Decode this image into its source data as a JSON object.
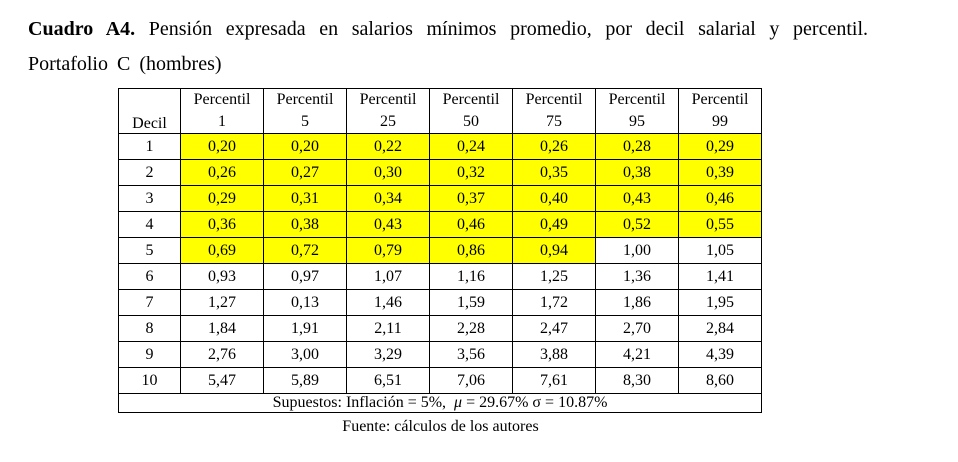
{
  "caption": {
    "label": "Cuadro A4.",
    "text": " Pensión expresada en salarios mínimos promedio, por decil salarial y percentil. Portafolio C (hombres)"
  },
  "table": {
    "decil_header": "Decil",
    "percentil_word": "Percentil",
    "percentiles": [
      "1",
      "5",
      "25",
      "50",
      "75",
      "95",
      "99"
    ],
    "rows": [
      {
        "decil": "1",
        "values": [
          "0,20",
          "0,20",
          "0,22",
          "0,24",
          "0,26",
          "0,28",
          "0,29"
        ],
        "highlight": 7
      },
      {
        "decil": "2",
        "values": [
          "0,26",
          "0,27",
          "0,30",
          "0,32",
          "0,35",
          "0,38",
          "0,39"
        ],
        "highlight": 7
      },
      {
        "decil": "3",
        "values": [
          "0,29",
          "0,31",
          "0,34",
          "0,37",
          "0,40",
          "0,43",
          "0,46"
        ],
        "highlight": 7
      },
      {
        "decil": "4",
        "values": [
          "0,36",
          "0,38",
          "0,43",
          "0,46",
          "0,49",
          "0,52",
          "0,55"
        ],
        "highlight": 7
      },
      {
        "decil": "5",
        "values": [
          "0,69",
          "0,72",
          "0,79",
          "0,86",
          "0,94",
          "1,00",
          "1,05"
        ],
        "highlight": 5
      },
      {
        "decil": "6",
        "values": [
          "0,93",
          "0,97",
          "1,07",
          "1,16",
          "1,25",
          "1,36",
          "1,41"
        ],
        "highlight": 0
      },
      {
        "decil": "7",
        "values": [
          "1,27",
          "0,13",
          "1,46",
          "1,59",
          "1,72",
          "1,86",
          "1,95"
        ],
        "highlight": 0
      },
      {
        "decil": "8",
        "values": [
          "1,84",
          "1,91",
          "2,11",
          "2,28",
          "2,47",
          "2,70",
          "2,84"
        ],
        "highlight": 0
      },
      {
        "decil": "9",
        "values": [
          "2,76",
          "3,00",
          "3,29",
          "3,56",
          "3,88",
          "4,21",
          "4,39"
        ],
        "highlight": 0
      },
      {
        "decil": "10",
        "values": [
          "5,47",
          "5,89",
          "6,51",
          "7,06",
          "7,61",
          "8,30",
          "8,60"
        ],
        "highlight": 0
      }
    ],
    "assumptions": {
      "pre": "Supuestos: Inflación = 5%,",
      "mu": "μ",
      "post": " = 29.67% σ = 10.87%"
    },
    "highlight_color": "#ffff00"
  },
  "source": "Fuente: cálculos de los autores"
}
